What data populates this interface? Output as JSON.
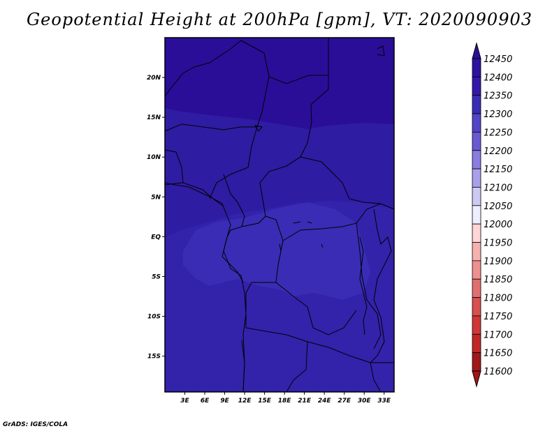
{
  "title": "Geopotential Height at 200hPa [gpm], VT: 2020090903",
  "credit": "GrADS: IGES/COLA",
  "map": {
    "lon_range": [
      0,
      34.5
    ],
    "lat_range": [
      -19.5,
      25
    ],
    "lat_ticks": [
      {
        "value": 20,
        "label": "20N"
      },
      {
        "value": 15,
        "label": "15N"
      },
      {
        "value": 10,
        "label": "10N"
      },
      {
        "value": 5,
        "label": "5N"
      },
      {
        "value": 0,
        "label": "EQ"
      },
      {
        "value": -5,
        "label": "5S"
      },
      {
        "value": -10,
        "label": "10S"
      },
      {
        "value": -15,
        "label": "15S"
      }
    ],
    "lon_ticks": [
      {
        "value": 3,
        "label": "3E"
      },
      {
        "value": 6,
        "label": "6E"
      },
      {
        "value": 9,
        "label": "9E"
      },
      {
        "value": 12,
        "label": "12E"
      },
      {
        "value": 15,
        "label": "15E"
      },
      {
        "value": 18,
        "label": "18E"
      },
      {
        "value": 21,
        "label": "21E"
      },
      {
        "value": 24,
        "label": "24E"
      },
      {
        "value": 27,
        "label": "27E"
      },
      {
        "value": 30,
        "label": "30E"
      },
      {
        "value": 33,
        "label": "33E"
      }
    ]
  },
  "colorbar": {
    "levels": [
      "12450",
      "12400",
      "12350",
      "12300",
      "12250",
      "12200",
      "12150",
      "12100",
      "12050",
      "12000",
      "11950",
      "11900",
      "11850",
      "11800",
      "11750",
      "11700",
      "11650",
      "11600"
    ],
    "colors": [
      "#2a0f9a",
      "#2c129e",
      "#3318a8",
      "#3a2cb2",
      "#5245c6",
      "#6a5ad2",
      "#8a7ce0",
      "#aaa0ea",
      "#cccaf4",
      "#eeeeff",
      "#ffd6d6",
      "#f6b0b0",
      "#ee9090",
      "#e07070",
      "#d85050",
      "#d03838",
      "#c02828",
      "#a01818"
    ]
  },
  "fields": {
    "north_color": "#2a0e98",
    "band_color": "#2e1ca2",
    "south_color": "#3322aa",
    "basin_color": "#3a2cb4"
  }
}
